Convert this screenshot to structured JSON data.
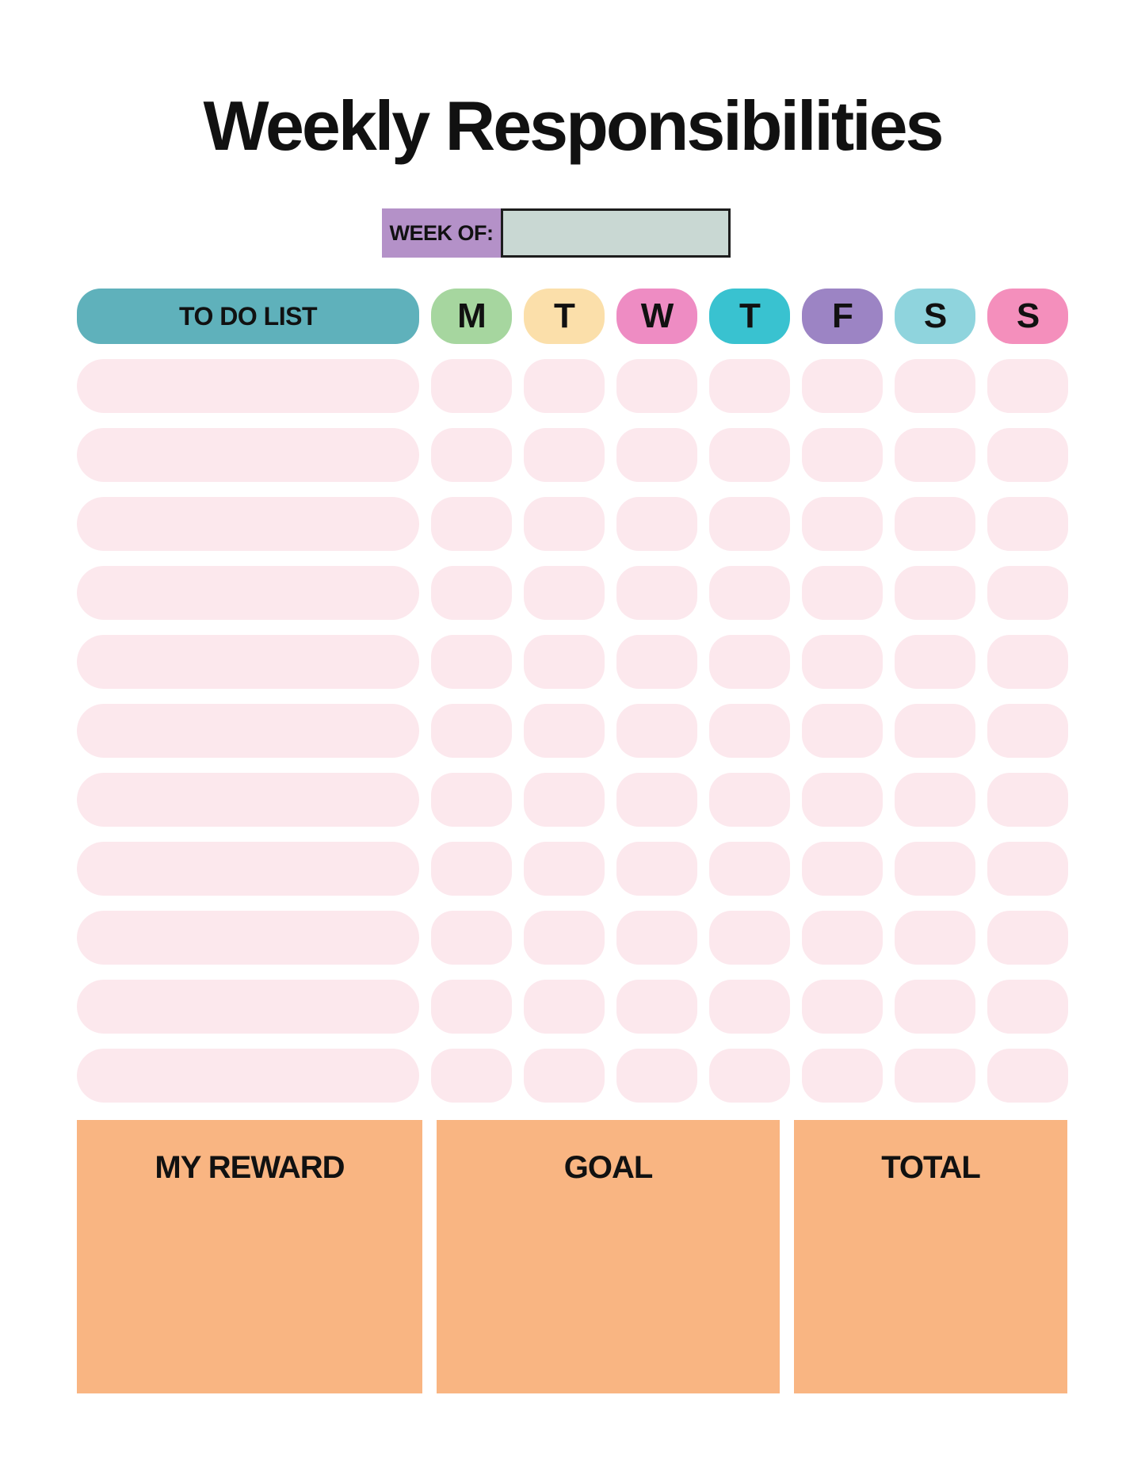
{
  "page": {
    "title": "Weekly Responsibilities"
  },
  "week_of": {
    "label": "WEEK OF:",
    "value": ""
  },
  "table": {
    "todo_header": {
      "label": "TO DO LIST",
      "bg": "#5fb1bb"
    },
    "day_headers": [
      {
        "label": "M",
        "bg": "#a6d69f"
      },
      {
        "label": "T",
        "bg": "#fbdfaa"
      },
      {
        "label": "W",
        "bg": "#ee8cc3"
      },
      {
        "label": "T",
        "bg": "#39c2d0"
      },
      {
        "label": "F",
        "bg": "#9c84c4"
      },
      {
        "label": "S",
        "bg": "#8fd4dd"
      },
      {
        "label": "S",
        "bg": "#f48fbc"
      }
    ],
    "row_count": 11,
    "cell_value": ""
  },
  "footer": {
    "boxes": [
      {
        "label": "MY REWARD",
        "value": ""
      },
      {
        "label": "GOAL",
        "value": ""
      },
      {
        "label": "TOTAL",
        "value": ""
      }
    ]
  },
  "colors": {
    "page_bg": "#ffffff",
    "text": "#111111",
    "row_pink": "#fce8ed",
    "orange_box": "#f9b582",
    "week_label_purple": "#b491c8",
    "week_input_fill": "#c9d8d3",
    "week_input_border": "#1d1d1d",
    "todo_header_teal": "#5fb1bb"
  }
}
